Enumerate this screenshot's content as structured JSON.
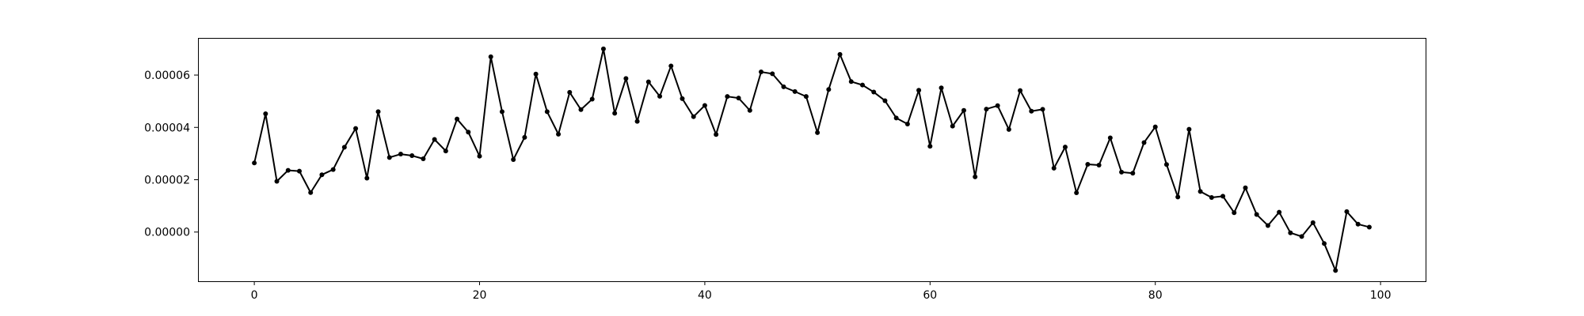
{
  "chart_data": {
    "type": "line",
    "title": "",
    "xlabel": "",
    "ylabel": "",
    "xlim": [
      -5,
      104
    ],
    "ylim": [
      -1.88e-05,
      7.42e-05
    ],
    "xticks": [
      0,
      20,
      40,
      60,
      80,
      100
    ],
    "xtick_labels": [
      "0",
      "20",
      "40",
      "60",
      "80",
      "100"
    ],
    "yticks": [
      0.0,
      2e-05,
      4e-05,
      6e-05
    ],
    "ytick_labels": [
      "0.00000",
      "0.00002",
      "0.00004",
      "0.00006"
    ],
    "grid": false,
    "legend": "none",
    "series": [
      {
        "color": "#000000",
        "marker": "point",
        "x": [
          0,
          1,
          2,
          3,
          4,
          5,
          6,
          7,
          8,
          9,
          10,
          11,
          12,
          13,
          14,
          15,
          16,
          17,
          18,
          19,
          20,
          21,
          22,
          23,
          24,
          25,
          26,
          27,
          28,
          29,
          30,
          31,
          32,
          33,
          34,
          35,
          36,
          37,
          38,
          39,
          40,
          41,
          42,
          43,
          44,
          45,
          46,
          47,
          48,
          49,
          50,
          51,
          52,
          53,
          54,
          55,
          56,
          57,
          58,
          59,
          60,
          61,
          62,
          63,
          64,
          65,
          66,
          67,
          68,
          69,
          70,
          71,
          72,
          73,
          74,
          75,
          76,
          77,
          78,
          79,
          80,
          81,
          82,
          83,
          84,
          85,
          86,
          87,
          88,
          89,
          90,
          91,
          92,
          93,
          94,
          95,
          96,
          97,
          98,
          99
        ],
        "values": [
          2.64e-05,
          4.52e-05,
          1.94e-05,
          2.36e-05,
          2.33e-05,
          1.51e-05,
          2.19e-05,
          2.39e-05,
          3.24e-05,
          3.96e-05,
          2.06e-05,
          4.6e-05,
          2.85e-05,
          2.98e-05,
          2.92e-05,
          2.8e-05,
          3.54e-05,
          3.1e-05,
          4.32e-05,
          3.82e-05,
          2.9e-05,
          6.7e-05,
          4.6e-05,
          2.77e-05,
          3.62e-05,
          6.04e-05,
          4.6e-05,
          3.74e-05,
          5.34e-05,
          4.68e-05,
          5.08e-05,
          7e-05,
          4.54e-05,
          5.87e-05,
          4.23e-05,
          5.74e-05,
          5.19e-05,
          6.35e-05,
          5.1e-05,
          4.41e-05,
          4.84e-05,
          3.73e-05,
          5.18e-05,
          5.12e-05,
          4.65e-05,
          6.12e-05,
          6.05e-05,
          5.55e-05,
          5.37e-05,
          5.18e-05,
          3.8e-05,
          5.45e-05,
          6.79e-05,
          5.75e-05,
          5.62e-05,
          5.35e-05,
          5.02e-05,
          4.36e-05,
          4.13e-05,
          5.42e-05,
          3.28e-05,
          5.51e-05,
          4.05e-05,
          4.65e-05,
          2.11e-05,
          4.7e-05,
          4.83e-05,
          3.92e-05,
          5.41e-05,
          4.62e-05,
          4.69e-05,
          2.44e-05,
          3.25e-05,
          1.5e-05,
          2.59e-05,
          2.56e-05,
          3.6e-05,
          2.29e-05,
          2.25e-05,
          3.42e-05,
          4.02e-05,
          2.58e-05,
          1.34e-05,
          3.93e-05,
          1.55e-05,
          1.32e-05,
          1.37e-05,
          7.4e-06,
          1.69e-05,
          6.7e-06,
          2.5e-06,
          7.6e-06,
          -3e-07,
          -1.7e-06,
          3.6e-06,
          -4.4e-06,
          -1.47e-05,
          7.8e-06,
          3e-06,
          1.9e-06
        ]
      }
    ]
  }
}
